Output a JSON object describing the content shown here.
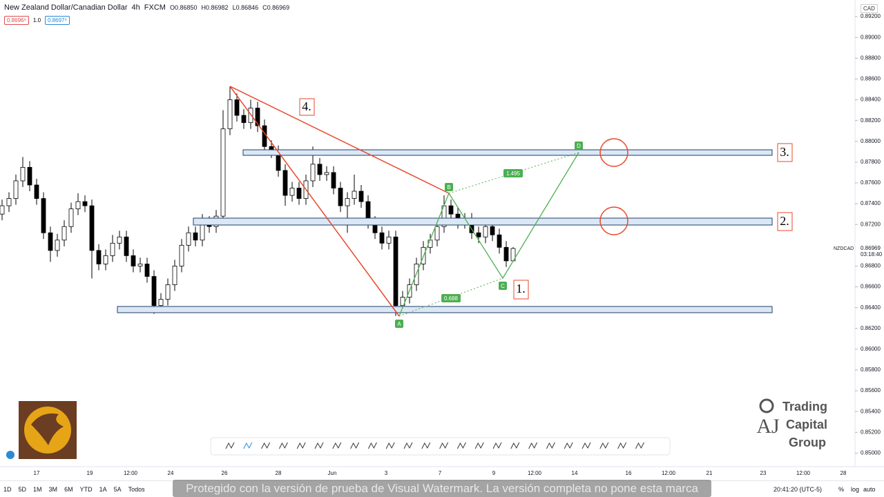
{
  "header": {
    "title": "New Zealand Dollar/Canadian Dollar",
    "interval": "4h",
    "source": "FXCM",
    "ohlc": [
      "O0.86850",
      "H0.86982",
      "L0.86846",
      "C0.86969"
    ]
  },
  "badges": [
    "0.8696⁹",
    "1.0",
    "0.8697⁹"
  ],
  "currency": "CAD",
  "price_label": {
    "symbol": "NZDCAD",
    "price": "0.86969",
    "countdown": "03:18:40"
  },
  "annotations": {
    "boxes": [
      "4.",
      "3.",
      "2.",
      "1."
    ],
    "points": [
      "A",
      "B",
      "C",
      "D"
    ],
    "ratios": [
      "0.688",
      "1.495"
    ]
  },
  "chart_data": {
    "type": "candlestick",
    "up_color": "#ffffff",
    "down_color": "#000000",
    "ylim": [
      0.8487,
      0.8936
    ],
    "yticks": [
      {
        "value": 0.85,
        "label": "0.85000"
      },
      {
        "value": 0.852,
        "label": "0.85200"
      },
      {
        "value": 0.854,
        "label": "0.85400"
      },
      {
        "value": 0.856,
        "label": "0.85600"
      },
      {
        "value": 0.858,
        "label": "0.85800"
      },
      {
        "value": 0.86,
        "label": "0.86000"
      },
      {
        "value": 0.862,
        "label": "0.86200"
      },
      {
        "value": 0.864,
        "label": "0.86400"
      },
      {
        "value": 0.866,
        "label": "0.86600"
      },
      {
        "value": 0.868,
        "label": "0.86800"
      },
      {
        "value": 0.872,
        "label": "0.87200"
      },
      {
        "value": 0.874,
        "label": "0.87400"
      },
      {
        "value": 0.876,
        "label": "0.87600"
      },
      {
        "value": 0.878,
        "label": "0.87800"
      },
      {
        "value": 0.88,
        "label": "0.88000"
      },
      {
        "value": 0.882,
        "label": "0.88200"
      },
      {
        "value": 0.884,
        "label": "0.88400"
      },
      {
        "value": 0.886,
        "label": "0.88600"
      },
      {
        "value": 0.888,
        "label": "0.88800"
      },
      {
        "value": 0.89,
        "label": "0.89000"
      },
      {
        "value": 0.892,
        "label": "0.89200"
      }
    ],
    "x_labels": [
      "17",
      "19",
      "12:00",
      "24",
      "26",
      "28",
      "Jun",
      "3",
      "7",
      "9",
      "12:00",
      "14",
      "16",
      "12:00",
      "21",
      "23",
      "12:00",
      "28"
    ],
    "candles": [
      {
        "open": 0.873,
        "high": 0.8744,
        "low": 0.8724,
        "close": 0.8738
      },
      {
        "open": 0.8738,
        "high": 0.8751,
        "low": 0.8732,
        "close": 0.8745
      },
      {
        "open": 0.8745,
        "high": 0.8768,
        "low": 0.8739,
        "close": 0.8762
      },
      {
        "open": 0.8762,
        "high": 0.8785,
        "low": 0.8756,
        "close": 0.8775
      },
      {
        "open": 0.8775,
        "high": 0.8781,
        "low": 0.8752,
        "close": 0.8758
      },
      {
        "open": 0.8758,
        "high": 0.8764,
        "low": 0.8739,
        "close": 0.8745
      },
      {
        "open": 0.8745,
        "high": 0.8751,
        "low": 0.8706,
        "close": 0.8712
      },
      {
        "open": 0.8712,
        "high": 0.8718,
        "low": 0.8684,
        "close": 0.8695
      },
      {
        "open": 0.8695,
        "high": 0.8711,
        "low": 0.8689,
        "close": 0.8705
      },
      {
        "open": 0.8705,
        "high": 0.8724,
        "low": 0.8699,
        "close": 0.8718
      },
      {
        "open": 0.8718,
        "high": 0.8741,
        "low": 0.8712,
        "close": 0.8735
      },
      {
        "open": 0.8735,
        "high": 0.875,
        "low": 0.8729,
        "close": 0.8742
      },
      {
        "open": 0.8742,
        "high": 0.8748,
        "low": 0.8732,
        "close": 0.8738
      },
      {
        "open": 0.8738,
        "high": 0.8744,
        "low": 0.8668,
        "close": 0.8695
      },
      {
        "open": 0.8695,
        "high": 0.8701,
        "low": 0.8676,
        "close": 0.8682
      },
      {
        "open": 0.8682,
        "high": 0.8696,
        "low": 0.8676,
        "close": 0.869
      },
      {
        "open": 0.869,
        "high": 0.871,
        "low": 0.8684,
        "close": 0.8702
      },
      {
        "open": 0.8702,
        "high": 0.8714,
        "low": 0.8696,
        "close": 0.8708
      },
      {
        "open": 0.8708,
        "high": 0.8714,
        "low": 0.8684,
        "close": 0.869
      },
      {
        "open": 0.869,
        "high": 0.8696,
        "low": 0.8674,
        "close": 0.868
      },
      {
        "open": 0.868,
        "high": 0.8688,
        "low": 0.8674,
        "close": 0.8682
      },
      {
        "open": 0.8682,
        "high": 0.8688,
        "low": 0.8664,
        "close": 0.867
      },
      {
        "open": 0.867,
        "high": 0.8676,
        "low": 0.8634,
        "close": 0.8642
      },
      {
        "open": 0.8642,
        "high": 0.8654,
        "low": 0.8636,
        "close": 0.8648
      },
      {
        "open": 0.8648,
        "high": 0.8668,
        "low": 0.8642,
        "close": 0.8662
      },
      {
        "open": 0.8662,
        "high": 0.8686,
        "low": 0.8656,
        "close": 0.868
      },
      {
        "open": 0.868,
        "high": 0.8706,
        "low": 0.8674,
        "close": 0.87
      },
      {
        "open": 0.87,
        "high": 0.8718,
        "low": 0.8694,
        "close": 0.8712
      },
      {
        "open": 0.8712,
        "high": 0.8718,
        "low": 0.8699,
        "close": 0.8705
      },
      {
        "open": 0.8705,
        "high": 0.873,
        "low": 0.8699,
        "close": 0.8722
      },
      {
        "open": 0.8722,
        "high": 0.8728,
        "low": 0.8712,
        "close": 0.8718
      },
      {
        "open": 0.8718,
        "high": 0.8734,
        "low": 0.8712,
        "close": 0.8728
      },
      {
        "open": 0.8728,
        "high": 0.883,
        "low": 0.8722,
        "close": 0.8812
      },
      {
        "open": 0.8812,
        "high": 0.8853,
        "low": 0.8806,
        "close": 0.884
      },
      {
        "open": 0.884,
        "high": 0.8846,
        "low": 0.8819,
        "close": 0.8825
      },
      {
        "open": 0.8825,
        "high": 0.8831,
        "low": 0.8812,
        "close": 0.8818
      },
      {
        "open": 0.8818,
        "high": 0.884,
        "low": 0.8812,
        "close": 0.8832
      },
      {
        "open": 0.8832,
        "high": 0.8838,
        "low": 0.8809,
        "close": 0.8815
      },
      {
        "open": 0.8815,
        "high": 0.8821,
        "low": 0.8789,
        "close": 0.8795
      },
      {
        "open": 0.8795,
        "high": 0.8801,
        "low": 0.8784,
        "close": 0.879
      },
      {
        "open": 0.879,
        "high": 0.8796,
        "low": 0.8766,
        "close": 0.8772
      },
      {
        "open": 0.8772,
        "high": 0.8778,
        "low": 0.8738,
        "close": 0.8748
      },
      {
        "open": 0.8748,
        "high": 0.8761,
        "low": 0.8742,
        "close": 0.8755
      },
      {
        "open": 0.8755,
        "high": 0.8761,
        "low": 0.8739,
        "close": 0.8745
      },
      {
        "open": 0.8745,
        "high": 0.8768,
        "low": 0.8739,
        "close": 0.8762
      },
      {
        "open": 0.8762,
        "high": 0.8795,
        "low": 0.8756,
        "close": 0.8778
      },
      {
        "open": 0.8778,
        "high": 0.8784,
        "low": 0.8762,
        "close": 0.8768
      },
      {
        "open": 0.8768,
        "high": 0.8776,
        "low": 0.8762,
        "close": 0.877
      },
      {
        "open": 0.877,
        "high": 0.8776,
        "low": 0.8749,
        "close": 0.8755
      },
      {
        "open": 0.8755,
        "high": 0.8761,
        "low": 0.8732,
        "close": 0.8738
      },
      {
        "open": 0.8738,
        "high": 0.8751,
        "low": 0.8712,
        "close": 0.8745
      },
      {
        "open": 0.8745,
        "high": 0.8768,
        "low": 0.8739,
        "close": 0.8752
      },
      {
        "open": 0.8752,
        "high": 0.8758,
        "low": 0.8736,
        "close": 0.8742
      },
      {
        "open": 0.8742,
        "high": 0.8748,
        "low": 0.8716,
        "close": 0.8722
      },
      {
        "open": 0.8722,
        "high": 0.8728,
        "low": 0.8706,
        "close": 0.8712
      },
      {
        "open": 0.8712,
        "high": 0.8718,
        "low": 0.8696,
        "close": 0.8702
      },
      {
        "open": 0.8702,
        "high": 0.8714,
        "low": 0.8696,
        "close": 0.8708
      },
      {
        "open": 0.8708,
        "high": 0.8714,
        "low": 0.8632,
        "close": 0.8642
      },
      {
        "open": 0.8642,
        "high": 0.8656,
        "low": 0.8636,
        "close": 0.865
      },
      {
        "open": 0.865,
        "high": 0.8668,
        "low": 0.8644,
        "close": 0.8662
      },
      {
        "open": 0.8662,
        "high": 0.8688,
        "low": 0.8656,
        "close": 0.8682
      },
      {
        "open": 0.8682,
        "high": 0.8704,
        "low": 0.8676,
        "close": 0.8698
      },
      {
        "open": 0.8698,
        "high": 0.8711,
        "low": 0.8692,
        "close": 0.8705
      },
      {
        "open": 0.8705,
        "high": 0.8724,
        "low": 0.8699,
        "close": 0.8718
      },
      {
        "open": 0.8718,
        "high": 0.8748,
        "low": 0.8712,
        "close": 0.8738
      },
      {
        "open": 0.8738,
        "high": 0.8744,
        "low": 0.8724,
        "close": 0.873
      },
      {
        "open": 0.873,
        "high": 0.8736,
        "low": 0.8716,
        "close": 0.8722
      },
      {
        "open": 0.8722,
        "high": 0.8731,
        "low": 0.8716,
        "close": 0.8725
      },
      {
        "open": 0.8725,
        "high": 0.8731,
        "low": 0.8706,
        "close": 0.8712
      },
      {
        "open": 0.8712,
        "high": 0.8718,
        "low": 0.8702,
        "close": 0.8708
      },
      {
        "open": 0.8708,
        "high": 0.8724,
        "low": 0.8702,
        "close": 0.8718
      },
      {
        "open": 0.8718,
        "high": 0.8724,
        "low": 0.8704,
        "close": 0.871
      },
      {
        "open": 0.871,
        "high": 0.8716,
        "low": 0.8692,
        "close": 0.8698
      },
      {
        "open": 0.8698,
        "high": 0.8704,
        "low": 0.8679,
        "close": 0.8685
      },
      {
        "open": 0.8685,
        "high": 0.86982,
        "low": 0.86846,
        "close": 0.86969
      }
    ]
  },
  "bottom_bar": {
    "timeframes": [
      "1D",
      "5D",
      "1M",
      "3M",
      "6M",
      "YTD",
      "1A",
      "5A",
      "Todos"
    ],
    "clock": "20:41:20 (UTC-5)",
    "options": [
      "%",
      "log",
      "auto"
    ]
  },
  "watermark": "Protegido con la versión de prueba de Visual Watermark. La versión completa no pone esta marca",
  "logo": {
    "lines": [
      "Trading",
      "Capital",
      "Group"
    ]
  }
}
